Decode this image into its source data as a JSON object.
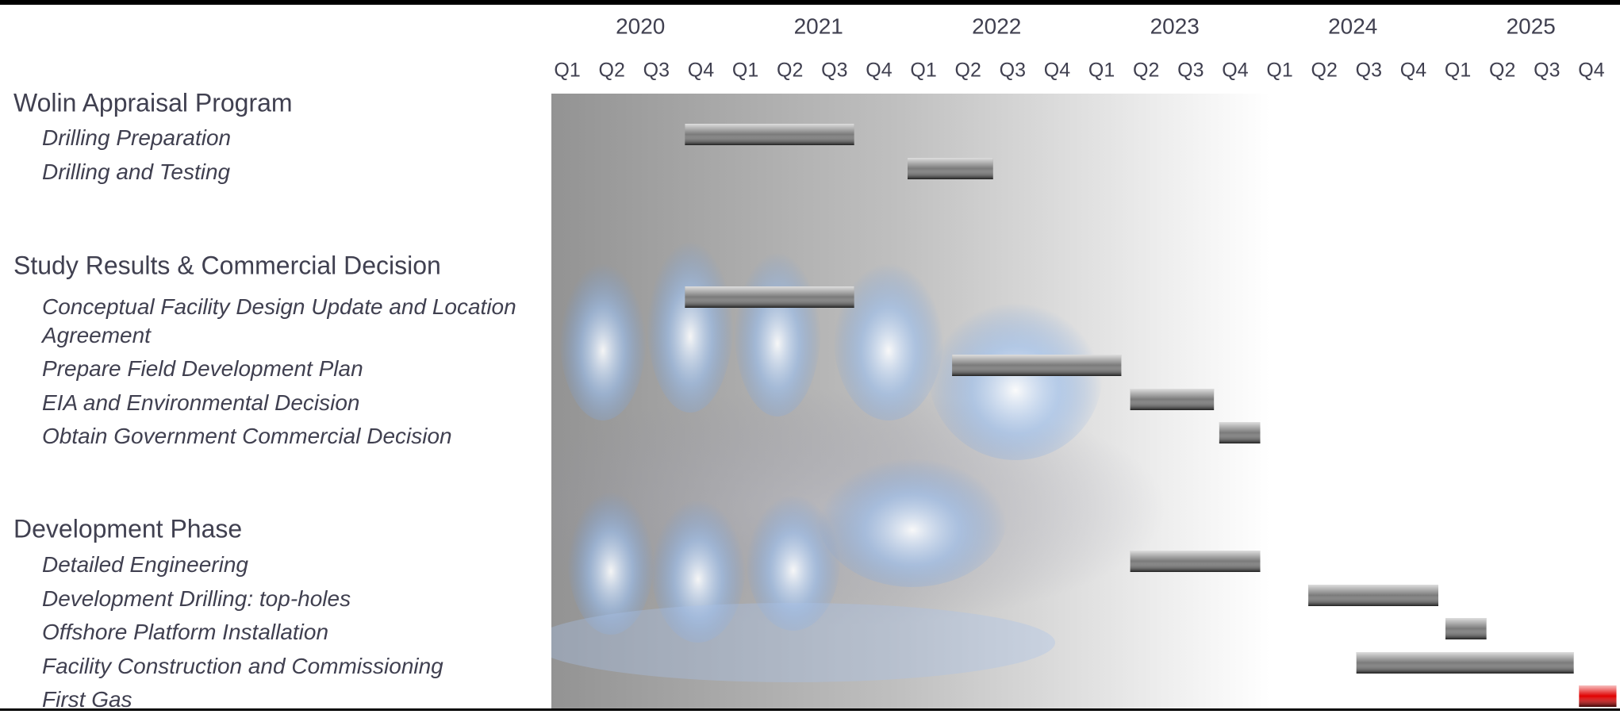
{
  "chart_data": {
    "type": "gantt",
    "years": [
      "2020",
      "2021",
      "2022",
      "2023",
      "2024",
      "2025"
    ],
    "quarters": [
      "Q1",
      "Q2",
      "Q3",
      "Q4",
      "Q1",
      "Q2",
      "Q3",
      "Q4",
      "Q1",
      "Q2",
      "Q3",
      "Q4",
      "Q1",
      "Q2",
      "Q3",
      "Q4",
      "Q1",
      "Q2",
      "Q3",
      "Q4",
      "Q1",
      "Q2",
      "Q3",
      "Q4"
    ],
    "xlim": [
      2020,
      2026
    ],
    "groups": [
      {
        "name": "Wolin Appraisal Program",
        "tasks": [
          {
            "name": "Drilling Preparation",
            "start": 2020.75,
            "end": 2021.7,
            "color": "#7a7a7a"
          },
          {
            "name": "Drilling and Testing",
            "start": 2022.0,
            "end": 2022.48,
            "color": "#7a7a7a"
          }
        ]
      },
      {
        "name": "Study Results & Commercial Decision",
        "tasks": [
          {
            "name": "Conceptual Facility Design Update and Location Agreement",
            "start": 2020.75,
            "end": 2021.7,
            "color": "#7a7a7a"
          },
          {
            "name": "Prepare Field Development Plan",
            "start": 2022.25,
            "end": 2023.2,
            "color": "#7a7a7a"
          },
          {
            "name": "EIA and Environmental Decision",
            "start": 2023.25,
            "end": 2023.72,
            "color": "#7a7a7a"
          },
          {
            "name": "Obtain Government Commercial Decision",
            "start": 2023.75,
            "end": 2023.98,
            "color": "#7a7a7a"
          }
        ]
      },
      {
        "name": "Development Phase",
        "tasks": [
          {
            "name": "Detailed Engineering",
            "start": 2023.25,
            "end": 2023.98,
            "color": "#7a7a7a"
          },
          {
            "name": "Development Drilling: top-holes",
            "start": 2024.25,
            "end": 2024.98,
            "color": "#7a7a7a"
          },
          {
            "name": "Offshore Platform Installation",
            "start": 2025.02,
            "end": 2025.25,
            "color": "#7a7a7a"
          },
          {
            "name": "Facility Construction and Commissioning",
            "start": 2024.52,
            "end": 2025.74,
            "color": "#7a7a7a"
          },
          {
            "name": "First Gas",
            "start": 2025.77,
            "end": 2025.98,
            "color": "#e00000"
          }
        ]
      }
    ]
  }
}
